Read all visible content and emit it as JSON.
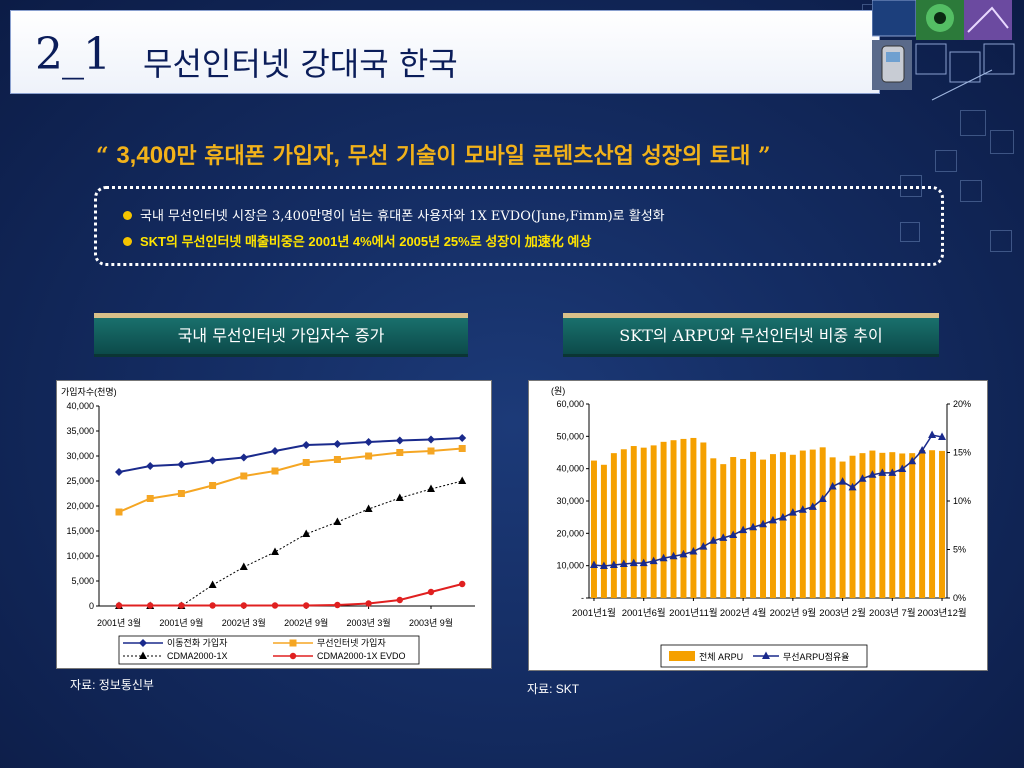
{
  "slide": {
    "number": "2_1",
    "title": "무선인터넷 강대국 한국",
    "headline_open": "“ ",
    "headline_number": "3,400",
    "headline_mid": "만 휴대폰 가입자",
    "headline_comma": ",",
    "headline_rest": " 무선 기술이 모바일 콘텐츠산업 성장의 토대  ”",
    "bullets": [
      "국내 무선인터넷 시장은 3,400만명이 넘는 휴대폰 사용자와 1X EVDO(June,Fimm)로 활성화",
      "SKT의 무선인터넷 매출비중은 2001년 4%에서 2005년 25%로 성장이 加速化 예상"
    ],
    "left_panel_label": "국내 무선인터넷 가입자수 증가",
    "right_panel_label": "SKT의 ARPU와 무선인터넷 비중 추이",
    "left_source": "자료: 정보통신부",
    "right_source": "자료: SKT"
  },
  "chart_data": [
    {
      "type": "line",
      "ylabel": "가입자수(천명)",
      "ylim": [
        0,
        40000
      ],
      "yticks": [
        "0",
        "5,000",
        "10,000",
        "15,000",
        "20,000",
        "25,000",
        "30,000",
        "35,000",
        "40,000"
      ],
      "xtick_labels": [
        "2001년 3월",
        "2001년 9월",
        "2002년 3월",
        "2002년 9월",
        "2003년 3월",
        "2003년 9월"
      ],
      "x_points": 12,
      "series": [
        {
          "name": "이동전화 가입자",
          "color": "#1a2a8c",
          "marker": "diamond",
          "dash": false,
          "values": [
            26800,
            28000,
            28300,
            29100,
            29700,
            31000,
            32200,
            32400,
            32800,
            33100,
            33300,
            33600
          ]
        },
        {
          "name": "무선인터넷 가입자",
          "color": "#f5a623",
          "marker": "square",
          "dash": false,
          "values": [
            18800,
            21500,
            22500,
            24100,
            26000,
            27000,
            28700,
            29300,
            30000,
            30700,
            31000,
            31500
          ]
        },
        {
          "name": "CDMA2000-1X",
          "color": "#000000",
          "marker": "triangle",
          "dash": true,
          "values": [
            0,
            0,
            0,
            4200,
            7800,
            10800,
            14400,
            16800,
            19400,
            21600,
            23400,
            25000
          ]
        },
        {
          "name": "CDMA2000-1X EVDO",
          "color": "#e02020",
          "marker": "circle",
          "dash": false,
          "values": [
            100,
            100,
            100,
            100,
            100,
            100,
            100,
            200,
            500,
            1200,
            2800,
            4400
          ]
        }
      ]
    },
    {
      "type": "bar",
      "ylabel": "(원)",
      "ylim": [
        0,
        60000
      ],
      "yticks": [
        "-",
        "10,000",
        "20,000",
        "30,000",
        "40,000",
        "50,000",
        "60,000"
      ],
      "y2lim": [
        0,
        20
      ],
      "y2ticks": [
        "0%",
        "5%",
        "10%",
        "15%",
        "20%"
      ],
      "xtick_labels": [
        "2001년1월",
        "2001년6월",
        "2001년11월",
        "2002년 4월",
        "2002년 9월",
        "2003년 2월",
        "2003년 7월",
        "2003년12월"
      ],
      "series": [
        {
          "name": "전체 ARPU",
          "color": "#f5a000",
          "values": [
            42500,
            41200,
            44800,
            46000,
            47000,
            46500,
            47200,
            48300,
            48800,
            49200,
            49500,
            48100,
            43200,
            41400,
            43600,
            43000,
            45200,
            42800,
            44500,
            45100,
            44300,
            45600,
            45900,
            46600,
            43500,
            42200,
            44000,
            44800,
            45600,
            44900,
            45100,
            44700,
            44800,
            45800,
            45700,
            45500
          ]
        },
        {
          "name": "무선ARPU점유율",
          "color": "#1a2a8c",
          "marker": "triangle",
          "values": [
            3.4,
            3.3,
            3.4,
            3.5,
            3.6,
            3.6,
            3.8,
            4.1,
            4.3,
            4.5,
            4.8,
            5.3,
            5.9,
            6.2,
            6.5,
            7.0,
            7.3,
            7.6,
            8.0,
            8.3,
            8.8,
            9.1,
            9.4,
            10.2,
            11.5,
            12.0,
            11.4,
            12.3,
            12.7,
            12.9,
            12.9,
            13.3,
            14.1,
            15.2,
            16.8,
            16.6
          ]
        }
      ]
    }
  ]
}
